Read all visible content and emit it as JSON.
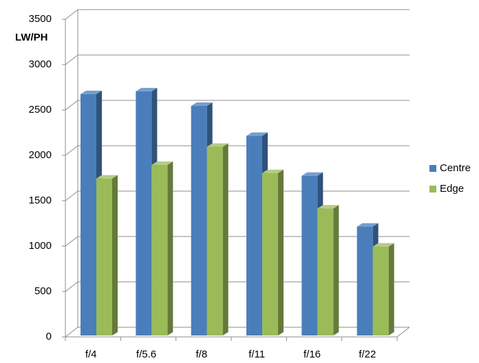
{
  "chart_data": {
    "type": "bar3d",
    "y_label": "LW/PH",
    "categories": [
      "f/4",
      "f/5.6",
      "f/8",
      "f/11",
      "f/16",
      "f/22"
    ],
    "series": [
      {
        "name": "Centre",
        "color": "#4a7ebb",
        "values": [
          2660,
          2690,
          2530,
          2200,
          1760,
          1200
        ]
      },
      {
        "name": "Edge",
        "color": "#9bbb59",
        "values": [
          1730,
          1880,
          2080,
          1790,
          1400,
          980
        ]
      }
    ],
    "ylim": [
      0,
      3500
    ],
    "yticks": [
      0,
      500,
      1000,
      1500,
      2000,
      2500,
      3000,
      3500
    ],
    "grid": true,
    "legend": "right"
  }
}
